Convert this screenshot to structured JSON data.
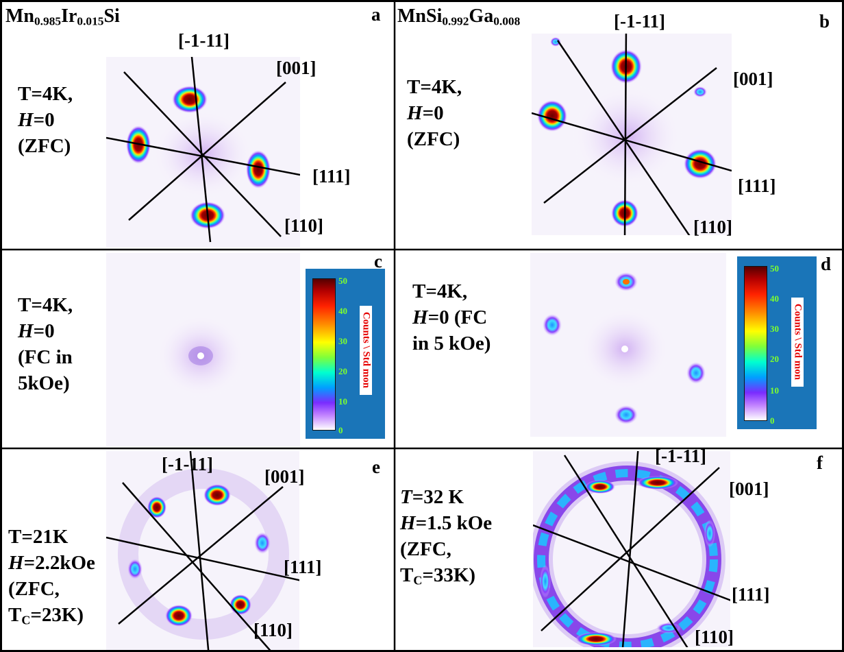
{
  "panels": {
    "a": {
      "letter": "a",
      "title_base1": "Mn",
      "title_sub1": "0.985",
      "title_base2": "Ir",
      "title_sub2": "0.015",
      "title_base3": "Si",
      "cond": [
        "T=4K,",
        "H",
        "=0",
        "(ZFC)"
      ],
      "dir_m111": "[-1-11]",
      "dir_001": "[001]",
      "dir_111": "[111]",
      "dir_110": "[110]"
    },
    "b": {
      "letter": "b",
      "title_base1": "MnSi",
      "title_sub1": "0.992",
      "title_base2": "Ga",
      "title_sub2": "0.008",
      "cond": [
        "T=4K,",
        "H",
        "=0",
        "(ZFC)"
      ],
      "dir_m111": "[-1-11]",
      "dir_001": "[001]",
      "dir_111": "[111]",
      "dir_110": "[110]"
    },
    "c": {
      "letter": "c",
      "cond": [
        "T=4K,",
        "H",
        "=0",
        "(FC in",
        "5kOe)"
      ]
    },
    "d": {
      "letter": "d",
      "cond": [
        "T=4K,",
        "H",
        "=0 (FC",
        "in 5 kOe)"
      ]
    },
    "e": {
      "letter": "e",
      "cond": [
        "T=21K",
        "H",
        "=2.2kOe",
        "(ZFC,",
        "T",
        "C",
        "=23K)"
      ],
      "dir_m111": "[-1-11]",
      "dir_001": "[001]",
      "dir_111": "[111]",
      "dir_110": "[110]"
    },
    "f": {
      "letter": "f",
      "cond": [
        "T",
        "=32 K",
        "H",
        "=1.5 kOe",
        "(ZFC,",
        "T",
        "C",
        "=33K)"
      ],
      "dir_m111": "[-1-11]",
      "dir_001": "[001]",
      "dir_111": "[111]",
      "dir_110": "[110]"
    }
  },
  "colorbar": {
    "title": "Counts \\ Std mon",
    "ticks": [
      "50",
      "40",
      "30",
      "20",
      "10",
      "0"
    ]
  }
}
